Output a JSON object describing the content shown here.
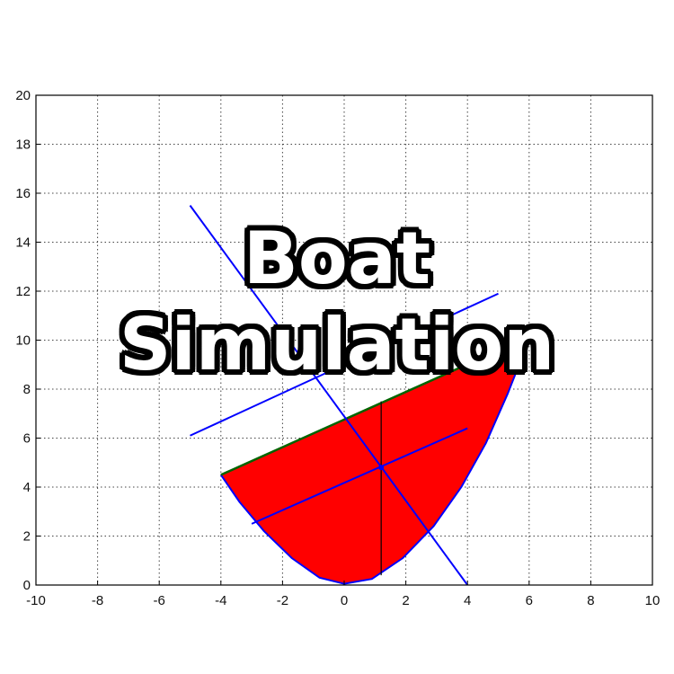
{
  "title_overlay": {
    "line1": "Boat",
    "line2": "Simulation"
  },
  "chart_data": {
    "type": "line",
    "xlim": [
      -10,
      10
    ],
    "ylim": [
      0,
      20
    ],
    "xticks": [
      "-10",
      "-8",
      "-6",
      "-4",
      "-2",
      "0",
      "2",
      "4",
      "6",
      "8",
      "10"
    ],
    "yticks": [
      "0",
      "2",
      "4",
      "6",
      "8",
      "10",
      "12",
      "14",
      "16",
      "18",
      "20"
    ],
    "grid": true,
    "hull": {
      "fill": "#ff0000",
      "outline": "#0000ff",
      "deck_color": "#006400",
      "points": [
        [
          -4,
          4.5
        ],
        [
          -3.4,
          3.4
        ],
        [
          -2.6,
          2.2
        ],
        [
          -1.7,
          1.1
        ],
        [
          -0.8,
          0.3
        ],
        [
          0,
          0.05
        ],
        [
          0.9,
          0.25
        ],
        [
          1.9,
          1.1
        ],
        [
          2.9,
          2.4
        ],
        [
          3.8,
          4.0
        ],
        [
          4.6,
          5.8
        ],
        [
          5.3,
          7.8
        ],
        [
          5.8,
          9.4
        ],
        [
          6.1,
          10.2
        ]
      ],
      "deck": [
        [
          -4,
          4.5
        ],
        [
          6.1,
          10.2
        ]
      ]
    },
    "lines": [
      {
        "color": "#0000ff",
        "points": [
          [
            -5,
            15.5
          ],
          [
            4,
            0
          ]
        ]
      },
      {
        "color": "#0000ff",
        "points": [
          [
            -5,
            6.1
          ],
          [
            5,
            11.9
          ]
        ]
      },
      {
        "color": "#0000ff",
        "points": [
          [
            -3,
            2.5
          ],
          [
            4,
            6.4
          ]
        ]
      },
      {
        "color": "#000000",
        "points": [
          [
            1.2,
            0.4
          ],
          [
            1.2,
            7.5
          ]
        ]
      }
    ],
    "center_point": [
      1.2,
      4.8
    ]
  }
}
